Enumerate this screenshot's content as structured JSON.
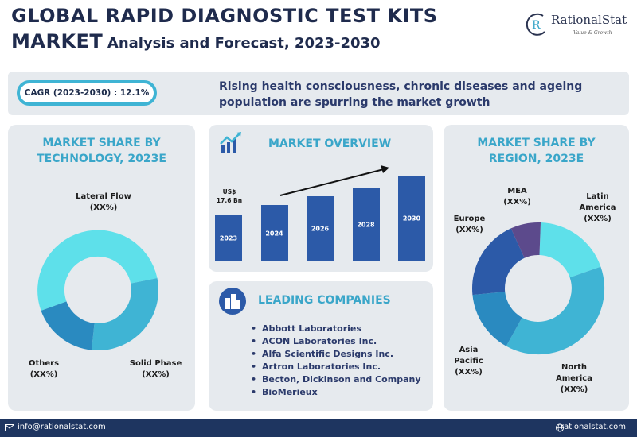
{
  "header": {
    "title_line1": "GLOBAL RAPID DIAGNOSTIC TEST KITS",
    "title_line2_big": "MARKET",
    "title_line2_small": "Analysis and Forecast, 2023-2030"
  },
  "logo": {
    "name": "RationalStat",
    "tagline": "Value & Growth"
  },
  "cagr": {
    "label": "CAGR (2023-2030) : 12.1%"
  },
  "drivers": {
    "line1": "Rising health consciousness, chronic diseases and ageing",
    "line2": "population are spurring the market growth"
  },
  "technology_panel": {
    "title_line1": "MARKET SHARE BY",
    "title_line2": "TECHNOLOGY, 2023E",
    "labels": [
      {
        "name": "Lateral Flow",
        "value": "(XX%)"
      },
      {
        "name": "Solid Phase",
        "value": "(XX%)"
      },
      {
        "name": "Others",
        "value": "(XX%)"
      }
    ]
  },
  "overview_panel": {
    "title": "MARKET OVERVIEW",
    "value_label_line1": "US$",
    "value_label_line2": "17.6 Bn",
    "bars": [
      {
        "year": "2023",
        "relative_height": 0.55
      },
      {
        "year": "2024",
        "relative_height": 0.66
      },
      {
        "year": "2026",
        "relative_height": 0.76
      },
      {
        "year": "2028",
        "relative_height": 0.86
      },
      {
        "year": "2030",
        "relative_height": 1.0
      }
    ]
  },
  "companies_panel": {
    "title": "LEADING COMPANIES",
    "items": [
      "Abbott Laboratories",
      "ACON Laboratories Inc.",
      "Alfa Scientific Designs Inc.",
      "Artron Laboratories Inc.",
      "Becton, Dickinson and Company",
      "BioMerieux"
    ]
  },
  "region_panel": {
    "title_line1": "MARKET SHARE BY",
    "title_line2": "REGION, 2023E",
    "labels": [
      {
        "name": "MEA",
        "value": "(XX%)"
      },
      {
        "name_line1": "Latin",
        "name_line2": "America",
        "value": "(XX%)"
      },
      {
        "name": "Europe",
        "value": "(XX%)"
      },
      {
        "name_line1": "Asia",
        "name_line2": "Pacific",
        "value": "(XX%)"
      },
      {
        "name_line1": "North",
        "name_line2": "America",
        "value": "(XX%)"
      }
    ]
  },
  "colors": {
    "cyan_light": "#5ee0ea",
    "cyan_mid": "#3fb4d4",
    "blue_mid": "#2a8ac0",
    "blue_dark": "#2c5aa8",
    "purple": "#5c4a8c",
    "navy": "#1e3560",
    "panel_bg": "#e6eaee"
  },
  "footer": {
    "email": "info@rationalstat.com",
    "website": "rationalstat.com"
  }
}
